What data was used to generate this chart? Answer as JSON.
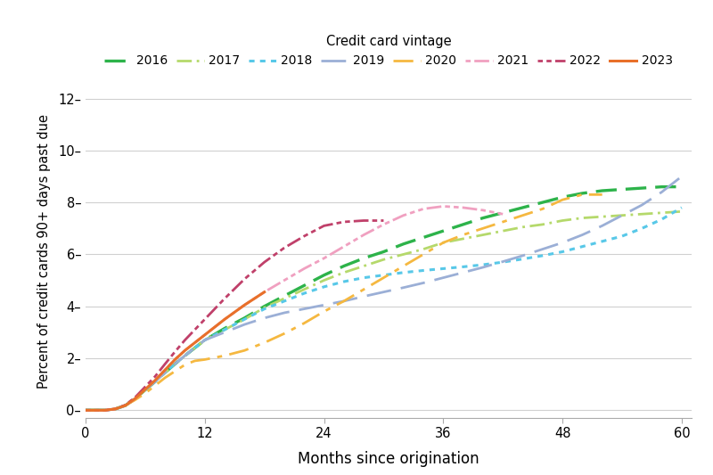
{
  "title": "Credit card vintage",
  "xlabel": "Months since origination",
  "ylabel": "Percent of credit cards 90+ days past due",
  "xlim": [
    0,
    61
  ],
  "ylim": [
    -0.3,
    12.5
  ],
  "xticks": [
    0,
    12,
    24,
    36,
    48,
    60
  ],
  "yticks": [
    0,
    2,
    4,
    6,
    8,
    10,
    12
  ],
  "series": [
    {
      "label": "2016",
      "color": "#2db34a",
      "linestyle": "dash",
      "linewidth": 2.4,
      "data_x": [
        0,
        1,
        2,
        3,
        4,
        5,
        6,
        7,
        8,
        9,
        10,
        11,
        12,
        14,
        16,
        18,
        20,
        22,
        24,
        26,
        28,
        30,
        32,
        34,
        36,
        38,
        40,
        42,
        44,
        46,
        48,
        50,
        52,
        54,
        56,
        58,
        60
      ],
      "data_y": [
        0,
        0,
        0,
        0.05,
        0.18,
        0.45,
        0.78,
        1.1,
        1.45,
        1.78,
        2.1,
        2.4,
        2.7,
        3.15,
        3.55,
        4.0,
        4.4,
        4.8,
        5.2,
        5.55,
        5.85,
        6.1,
        6.4,
        6.65,
        6.9,
        7.15,
        7.4,
        7.6,
        7.8,
        8.0,
        8.2,
        8.35,
        8.45,
        8.5,
        8.55,
        8.6,
        8.6
      ]
    },
    {
      "label": "2017",
      "color": "#b5d96b",
      "linestyle": "dashdot",
      "linewidth": 2.0,
      "data_x": [
        0,
        1,
        2,
        3,
        4,
        5,
        6,
        7,
        8,
        9,
        10,
        11,
        12,
        14,
        16,
        18,
        20,
        22,
        24,
        26,
        28,
        30,
        32,
        34,
        36,
        38,
        40,
        42,
        44,
        46,
        48,
        50,
        52,
        54,
        56,
        58,
        60
      ],
      "data_y": [
        0,
        0,
        0,
        0.05,
        0.18,
        0.45,
        0.78,
        1.1,
        1.45,
        1.78,
        2.1,
        2.4,
        2.7,
        3.1,
        3.5,
        3.95,
        4.3,
        4.65,
        5.0,
        5.3,
        5.55,
        5.8,
        6.0,
        6.2,
        6.45,
        6.6,
        6.75,
        6.9,
        7.05,
        7.15,
        7.3,
        7.4,
        7.45,
        7.5,
        7.55,
        7.6,
        7.65
      ]
    },
    {
      "label": "2018",
      "color": "#58c8e8",
      "linestyle": "dotted",
      "linewidth": 2.2,
      "data_x": [
        0,
        1,
        2,
        3,
        4,
        5,
        6,
        7,
        8,
        9,
        10,
        11,
        12,
        14,
        16,
        18,
        20,
        22,
        24,
        26,
        28,
        30,
        32,
        34,
        36,
        38,
        40,
        42,
        44,
        46,
        48,
        50,
        52,
        54,
        56,
        58,
        60
      ],
      "data_y": [
        0,
        0,
        0,
        0.05,
        0.18,
        0.45,
        0.78,
        1.1,
        1.45,
        1.78,
        2.1,
        2.4,
        2.7,
        3.1,
        3.5,
        3.9,
        4.2,
        4.5,
        4.75,
        4.95,
        5.1,
        5.2,
        5.3,
        5.38,
        5.45,
        5.52,
        5.6,
        5.7,
        5.82,
        5.95,
        6.1,
        6.3,
        6.5,
        6.7,
        7.0,
        7.35,
        7.8
      ]
    },
    {
      "label": "2019",
      "color": "#9bafd6",
      "linestyle": "longdash",
      "linewidth": 2.0,
      "data_x": [
        0,
        1,
        2,
        3,
        4,
        5,
        6,
        7,
        8,
        9,
        10,
        11,
        12,
        14,
        16,
        18,
        20,
        22,
        24,
        26,
        28,
        30,
        32,
        34,
        36,
        38,
        40,
        42,
        44,
        46,
        48,
        50,
        52,
        54,
        56,
        58,
        60
      ],
      "data_y": [
        0,
        0,
        0,
        0.05,
        0.18,
        0.45,
        0.78,
        1.1,
        1.45,
        1.78,
        2.1,
        2.4,
        2.7,
        3.0,
        3.3,
        3.55,
        3.75,
        3.9,
        4.05,
        4.2,
        4.38,
        4.55,
        4.72,
        4.9,
        5.1,
        5.3,
        5.5,
        5.72,
        5.95,
        6.2,
        6.45,
        6.75,
        7.1,
        7.5,
        7.9,
        8.4,
        9.0
      ]
    },
    {
      "label": "2020",
      "color": "#f5b840",
      "linestyle": "dashdot2",
      "linewidth": 2.0,
      "data_x": [
        0,
        1,
        2,
        3,
        4,
        5,
        6,
        7,
        8,
        9,
        10,
        11,
        12,
        14,
        16,
        18,
        20,
        22,
        24,
        26,
        28,
        30,
        32,
        34,
        36,
        38,
        40,
        42,
        44,
        46,
        48,
        50,
        52
      ],
      "data_y": [
        0,
        0,
        0,
        0.05,
        0.18,
        0.4,
        0.65,
        0.95,
        1.25,
        1.5,
        1.75,
        1.9,
        1.95,
        2.1,
        2.3,
        2.6,
        2.95,
        3.35,
        3.8,
        4.2,
        4.65,
        5.1,
        5.55,
        6.0,
        6.45,
        6.75,
        7.0,
        7.25,
        7.5,
        7.75,
        8.1,
        8.3,
        8.3
      ]
    },
    {
      "label": "2021",
      "color": "#f0a0c0",
      "linestyle": "dashdot3",
      "linewidth": 2.0,
      "data_x": [
        0,
        1,
        2,
        3,
        4,
        5,
        6,
        7,
        8,
        9,
        10,
        11,
        12,
        14,
        16,
        18,
        20,
        22,
        24,
        26,
        28,
        30,
        32,
        34,
        36,
        38,
        40,
        42
      ],
      "data_y": [
        0,
        0,
        0,
        0.05,
        0.18,
        0.45,
        0.8,
        1.15,
        1.55,
        1.95,
        2.3,
        2.6,
        2.9,
        3.5,
        4.05,
        4.55,
        5.0,
        5.45,
        5.85,
        6.3,
        6.75,
        7.15,
        7.5,
        7.75,
        7.85,
        7.8,
        7.7,
        7.55
      ]
    },
    {
      "label": "2022",
      "color": "#c0406a",
      "linestyle": "dotdash",
      "linewidth": 2.0,
      "data_x": [
        0,
        1,
        2,
        3,
        4,
        5,
        6,
        7,
        8,
        9,
        10,
        11,
        12,
        14,
        16,
        18,
        20,
        22,
        24,
        26,
        28,
        30
      ],
      "data_y": [
        0,
        0,
        0,
        0.05,
        0.2,
        0.5,
        0.9,
        1.3,
        1.78,
        2.25,
        2.7,
        3.1,
        3.5,
        4.3,
        5.05,
        5.7,
        6.25,
        6.7,
        7.1,
        7.25,
        7.3,
        7.3
      ]
    },
    {
      "label": "2023",
      "color": "#e8702a",
      "linestyle": "solid",
      "linewidth": 2.2,
      "data_x": [
        0,
        1,
        2,
        3,
        4,
        5,
        6,
        7,
        8,
        9,
        10,
        11,
        12,
        14,
        16,
        18
      ],
      "data_y": [
        0,
        0,
        0,
        0.05,
        0.18,
        0.45,
        0.8,
        1.15,
        1.55,
        1.95,
        2.3,
        2.6,
        2.9,
        3.5,
        4.05,
        4.55
      ]
    }
  ]
}
